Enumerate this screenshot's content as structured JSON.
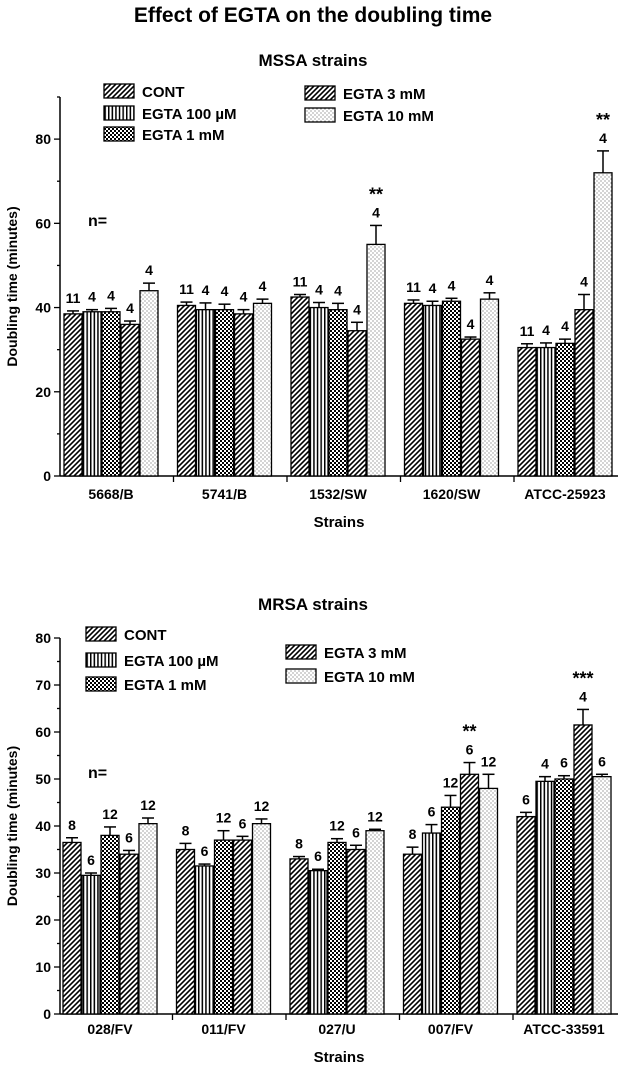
{
  "figure_title": "Effect of EGTA on the doubling time",
  "patterns": {
    "CONT": "diag",
    "EGTA 100 µM": "vert",
    "EGTA 1 mM": "check",
    "EGTA 3 mM": "diag",
    "EGTA 10 mM": "dots"
  },
  "chart_data": [
    {
      "type": "bar",
      "title": "MSSA strains",
      "xlabel": "Strains",
      "ylabel": "Doubling time (minutes)",
      "ylim": [
        0,
        90
      ],
      "yticks": [
        0,
        20,
        40,
        60,
        80
      ],
      "n_label": "n=",
      "categories": [
        "5668/B",
        "5741/B",
        "1532/SW",
        "1620/SW",
        "ATCC-25923"
      ],
      "legend": {
        "col1": [
          "CONT",
          "EGTA 100 µM",
          "EGTA 1 mM"
        ],
        "col2": [
          "EGTA 3 mM",
          "EGTA 10 mM"
        ]
      },
      "series": [
        {
          "name": "CONT",
          "values": [
            38.5,
            40.5,
            42.5,
            41,
            30.5
          ],
          "errors": [
            0.7,
            0.8,
            0.6,
            0.8,
            0.9
          ],
          "n": [
            "11",
            "11",
            "11",
            "11",
            "11"
          ],
          "sig": [
            "",
            "",
            "",
            "",
            ""
          ]
        },
        {
          "name": "EGTA 100 µM",
          "values": [
            39,
            39.5,
            40,
            40.5,
            30.5
          ],
          "errors": [
            0.5,
            1.6,
            1.2,
            1.0,
            1.1
          ],
          "n": [
            "4",
            "4",
            "4",
            "4",
            "4"
          ],
          "sig": [
            "",
            "",
            "",
            "",
            ""
          ]
        },
        {
          "name": "EGTA 1 mM",
          "values": [
            39,
            39.5,
            39.5,
            41.5,
            31.5
          ],
          "errors": [
            0.8,
            1.3,
            1.5,
            0.7,
            1.0
          ],
          "n": [
            "4",
            "4",
            "4",
            "4",
            "4"
          ],
          "sig": [
            "",
            "",
            "",
            "",
            ""
          ]
        },
        {
          "name": "EGTA 3 mM",
          "values": [
            36,
            38.5,
            34.5,
            32.5,
            39.5
          ],
          "errors": [
            0.8,
            1.0,
            2.0,
            0.5,
            3.6
          ],
          "n": [
            "4",
            "4",
            "4",
            "4",
            "4"
          ],
          "sig": [
            "",
            "",
            "",
            "",
            ""
          ]
        },
        {
          "name": "EGTA 10 mM",
          "values": [
            44,
            41,
            55,
            42,
            72
          ],
          "errors": [
            1.8,
            1.0,
            4.5,
            1.5,
            5.2
          ],
          "n": [
            "4",
            "4",
            "4",
            "4",
            "4"
          ],
          "sig": [
            "",
            "",
            "**",
            "",
            "**"
          ]
        }
      ]
    },
    {
      "type": "bar",
      "title": "MRSA strains",
      "xlabel": "Strains",
      "ylabel": "Doubling time (minutes)",
      "ylim": [
        0,
        80
      ],
      "yticks": [
        0,
        10,
        20,
        30,
        40,
        50,
        60,
        70,
        80
      ],
      "n_label": "n=",
      "categories": [
        "028/FV",
        "011/FV",
        "027/U",
        "007/FV",
        "ATCC-33591"
      ],
      "legend": {
        "col1": [
          "CONT",
          "EGTA 100 µM",
          "EGTA 1 mM"
        ],
        "col2": [
          "EGTA 3 mM",
          "EGTA 10 mM"
        ]
      },
      "series": [
        {
          "name": "CONT",
          "values": [
            36.5,
            35,
            33,
            34,
            42
          ],
          "errors": [
            1.0,
            1.3,
            0.5,
            1.5,
            0.9
          ],
          "n": [
            "8",
            "8",
            "8",
            "8",
            "6"
          ],
          "sig": [
            "",
            "",
            "",
            "",
            ""
          ]
        },
        {
          "name": "EGTA 100 µM",
          "values": [
            29.5,
            31.5,
            30.5,
            38.5,
            49.5
          ],
          "errors": [
            0.5,
            0.4,
            0.3,
            1.8,
            1.0
          ],
          "n": [
            "6",
            "6",
            "6",
            "6",
            "4"
          ],
          "sig": [
            "",
            "",
            "",
            "",
            ""
          ]
        },
        {
          "name": "EGTA 1 mM",
          "values": [
            38,
            37,
            36.5,
            44,
            50
          ],
          "errors": [
            1.8,
            2.0,
            0.8,
            2.5,
            0.7
          ],
          "n": [
            "12",
            "12",
            "12",
            "12",
            "6"
          ],
          "sig": [
            "",
            "",
            "",
            "",
            ""
          ]
        },
        {
          "name": "EGTA 3 mM",
          "values": [
            34,
            37,
            35,
            51,
            61.5
          ],
          "errors": [
            0.8,
            0.8,
            0.9,
            2.5,
            3.3
          ],
          "n": [
            "6",
            "6",
            "6",
            "6",
            "4"
          ],
          "sig": [
            "",
            "",
            "",
            "**",
            "***"
          ]
        },
        {
          "name": "EGTA 10 mM",
          "values": [
            40.5,
            40.5,
            39,
            48,
            50.5
          ],
          "errors": [
            1.2,
            1.0,
            0.3,
            3.0,
            0.5
          ],
          "n": [
            "12",
            "12",
            "12",
            "12",
            "6"
          ],
          "sig": [
            "",
            "",
            "",
            "",
            ""
          ]
        }
      ]
    }
  ]
}
